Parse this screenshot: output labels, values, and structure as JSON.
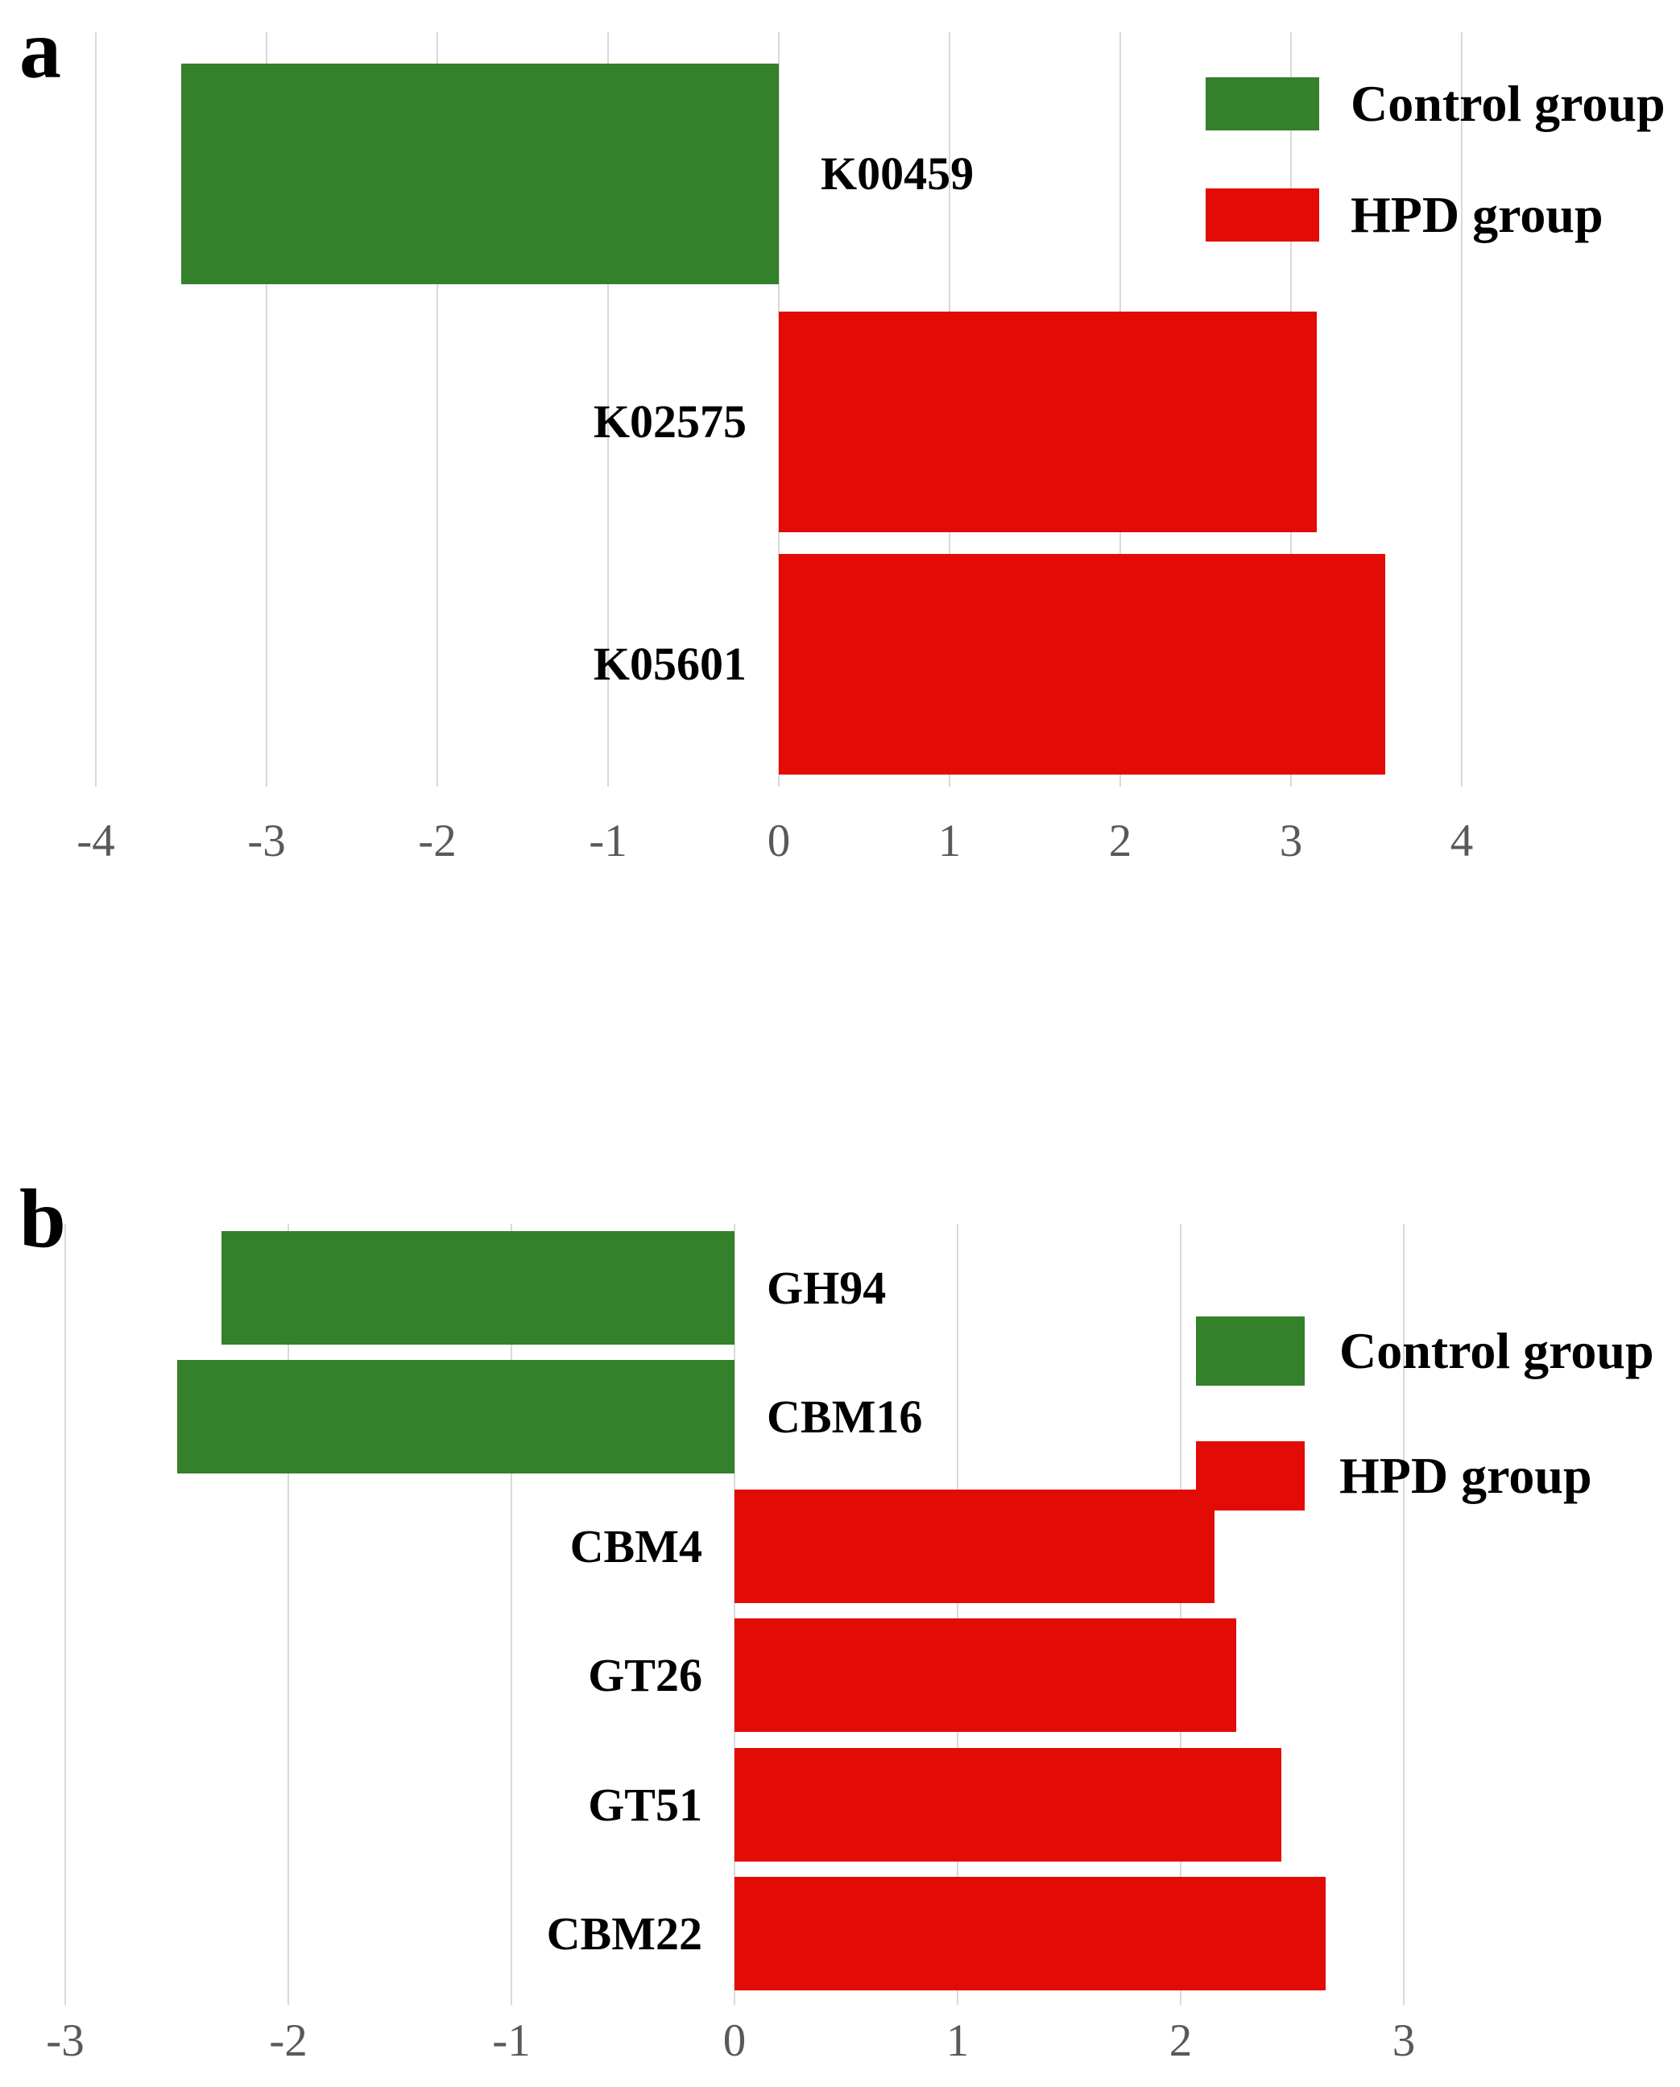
{
  "colors": {
    "control_green": "#35802a",
    "hpd_red": "#e30b05",
    "gridline": "#d9d9d9",
    "tick_text": "#58595b",
    "label_text": "#000000",
    "background": "#ffffff"
  },
  "legend": {
    "control_label": "Control group",
    "hpd_label": "HPD group"
  },
  "chart_data": [
    {
      "type": "bar",
      "panel_label": "a",
      "orientation": "horizontal",
      "title": "",
      "xlabel": "",
      "ylabel": "",
      "grid": true,
      "legend_position": "top-right",
      "xlim": [
        -4,
        4
      ],
      "xticks": [
        "-4",
        "-3",
        "-2",
        "-1",
        "0",
        "1",
        "2",
        "3",
        "4"
      ],
      "categories": [
        "K00459",
        "K02575",
        "K05601"
      ],
      "values": [
        -3.5,
        3.15,
        3.55
      ],
      "groups": [
        "Control group",
        "HPD group",
        "HPD group"
      ],
      "series": [
        {
          "name": "Control group",
          "color": "#35802a"
        },
        {
          "name": "HPD group",
          "color": "#e30b05"
        }
      ]
    },
    {
      "type": "bar",
      "panel_label": "b",
      "orientation": "horizontal",
      "title": "",
      "xlabel": "",
      "ylabel": "",
      "grid": true,
      "legend_position": "top-right",
      "xlim": [
        -3,
        3
      ],
      "xticks": [
        "-3",
        "-2",
        "-1",
        "0",
        "1",
        "2",
        "3"
      ],
      "categories": [
        "GH94",
        "CBM16",
        "CBM4",
        "GT26",
        "GT51",
        "CBM22"
      ],
      "values": [
        -2.3,
        -2.5,
        2.15,
        2.25,
        2.45,
        2.65
      ],
      "groups": [
        "Control group",
        "Control group",
        "HPD group",
        "HPD group",
        "HPD group",
        "HPD group"
      ],
      "series": [
        {
          "name": "Control group",
          "color": "#35802a"
        },
        {
          "name": "HPD group",
          "color": "#e30b05"
        }
      ]
    }
  ]
}
